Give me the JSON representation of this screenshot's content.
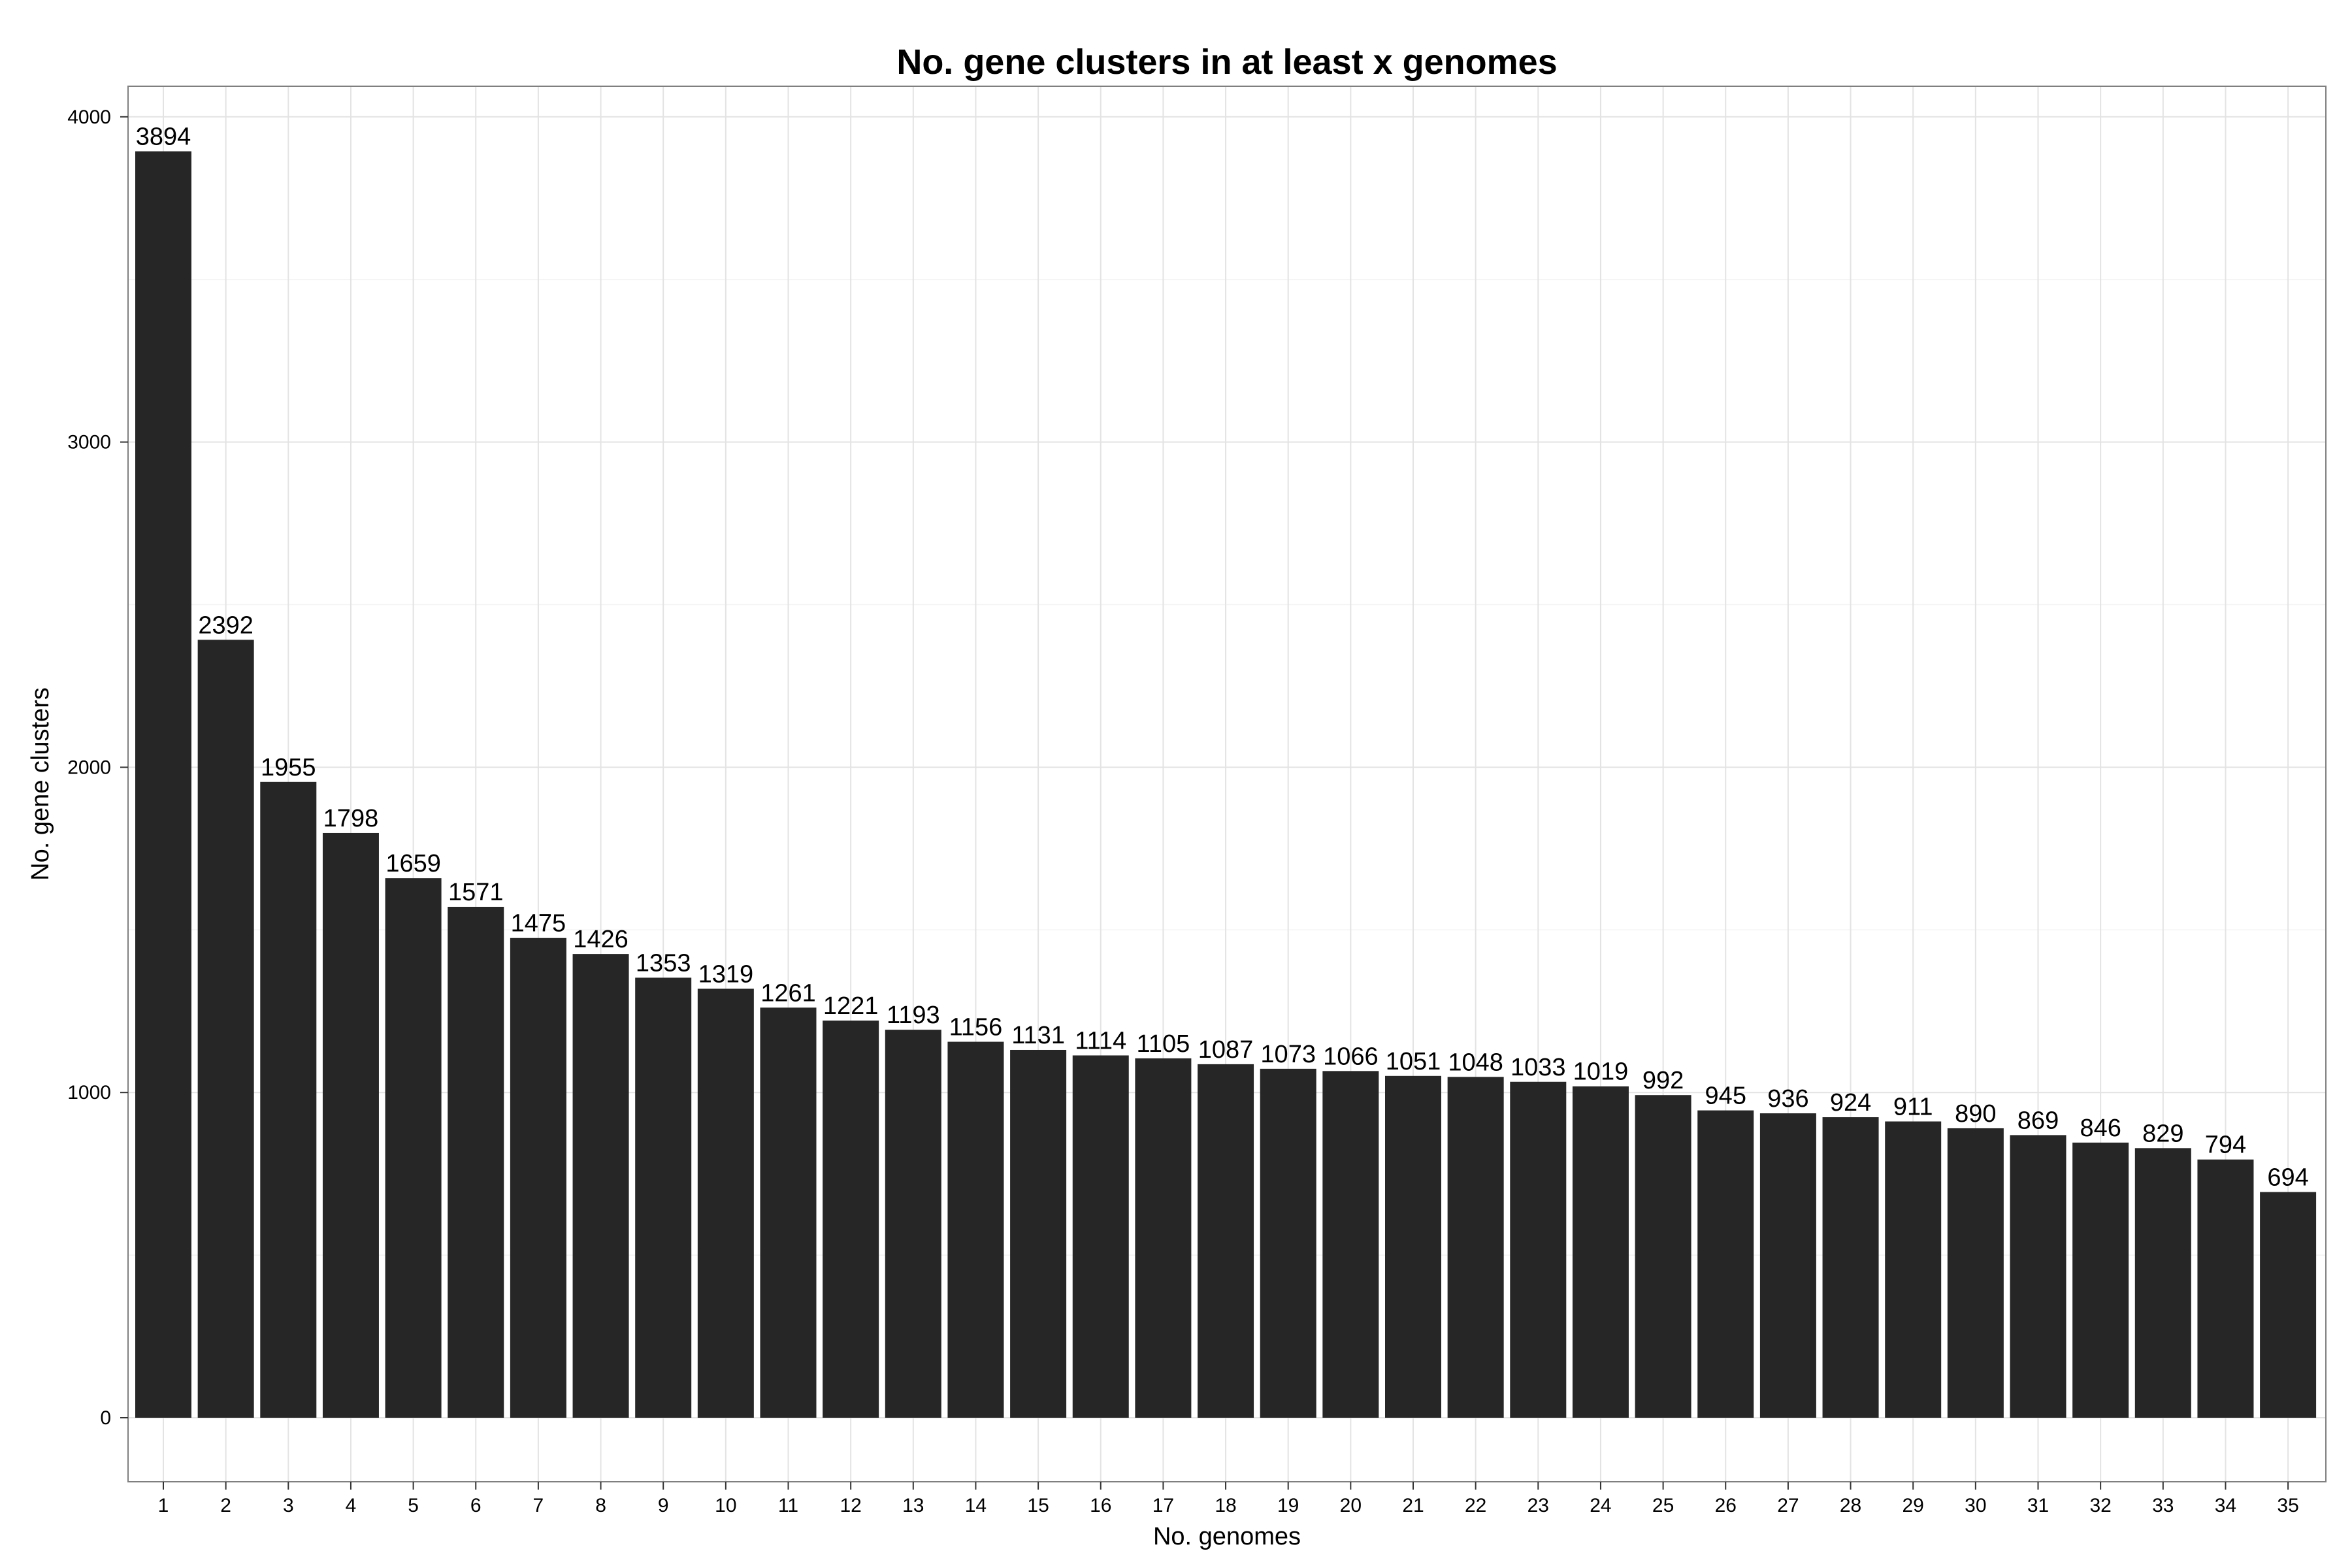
{
  "chart_data": {
    "type": "bar",
    "title": "No. gene clusters in at least x genomes",
    "xlabel": "No. genomes",
    "ylabel": "No. gene clusters",
    "categories": [
      "1",
      "2",
      "3",
      "4",
      "5",
      "6",
      "7",
      "8",
      "9",
      "10",
      "11",
      "12",
      "13",
      "14",
      "15",
      "16",
      "17",
      "18",
      "19",
      "20",
      "21",
      "22",
      "23",
      "24",
      "25",
      "26",
      "27",
      "28",
      "29",
      "30",
      "31",
      "32",
      "33",
      "34",
      "35"
    ],
    "values": [
      3894,
      2392,
      1955,
      1798,
      1659,
      1571,
      1475,
      1426,
      1353,
      1319,
      1261,
      1221,
      1193,
      1156,
      1131,
      1114,
      1105,
      1087,
      1073,
      1066,
      1051,
      1048,
      1033,
      1019,
      992,
      945,
      936,
      924,
      911,
      890,
      869,
      846,
      829,
      794,
      694
    ],
    "yticks": [
      0,
      1000,
      2000,
      3000,
      4000
    ],
    "ylim": [
      -190,
      4090
    ],
    "grid": true,
    "bar_color": "#262626",
    "show_data_labels": true
  }
}
